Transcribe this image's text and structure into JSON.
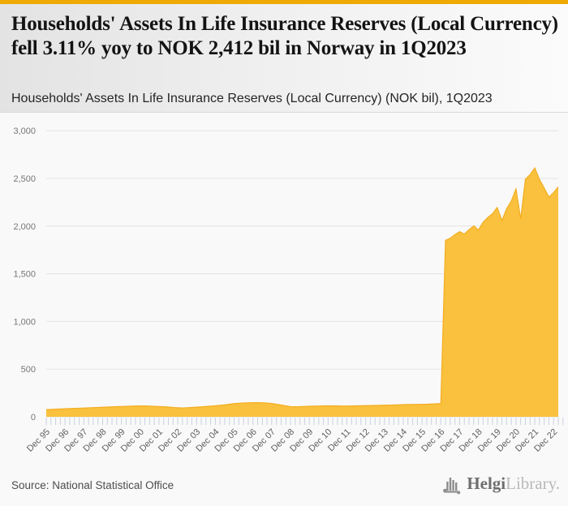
{
  "colors": {
    "accent_bar": "#f0a802",
    "area_fill": "#f9be35",
    "area_line": "#f3ad20",
    "gridline": "#e3e3e3",
    "tick": "#c9d0e2",
    "y_label": "#767676",
    "x_label": "#5f5f5f"
  },
  "header": {
    "title": "Households' Assets In Life Insurance Reserves (Local Currency) fell 3.11% yoy to NOK 2,412 bil in Norway in 1Q2023",
    "subtitle": "Households' Assets In Life Insurance Reserves (Local Currency) (NOK bil), 1Q2023"
  },
  "footer": {
    "source": "Source: National Statistical Office",
    "logo_primary": "Helgi",
    "logo_secondary": "Library."
  },
  "chart_data": {
    "type": "area",
    "title": "Households' Assets In Life Insurance Reserves (Local Currency) (NOK bil), 1Q2023",
    "ylabel": "",
    "xlabel": "",
    "unit": "NOK bil",
    "frequency": "quarterly",
    "start_period": "Dec 95",
    "end_period": "1Q 2023",
    "ylim": [
      0,
      3000
    ],
    "grid": "horizontal",
    "legend": "none",
    "yticks": [
      0,
      500,
      1000,
      1500,
      2000,
      2500,
      3000
    ],
    "ytick_labels": [
      "0",
      "500",
      "1,000",
      "1,500",
      "2,000",
      "2,500",
      "3,000"
    ],
    "x_year_labels": [
      "Dec 95",
      "Dec 96",
      "Dec 97",
      "Dec 98",
      "Dec 99",
      "Dec 00",
      "Dec 01",
      "Dec 02",
      "Dec 03",
      "Dec 04",
      "Dec 05",
      "Dec 06",
      "Dec 07",
      "Dec 08",
      "Dec 09",
      "Dec 10",
      "Dec 11",
      "Dec 12",
      "Dec 13",
      "Dec 14",
      "Dec 15",
      "Dec 16",
      "Dec 17",
      "Dec 18",
      "Dec 19",
      "Dec 20",
      "Dec 21",
      "Dec 22"
    ],
    "values": [
      75,
      78,
      80,
      82,
      84,
      86,
      88,
      90,
      92,
      94,
      96,
      98,
      100,
      102,
      104,
      106,
      108,
      110,
      112,
      113,
      114,
      114,
      112,
      110,
      108,
      105,
      102,
      98,
      95,
      93,
      95,
      98,
      101,
      104,
      108,
      112,
      116,
      120,
      126,
      132,
      138,
      142,
      145,
      147,
      148,
      148,
      147,
      145,
      140,
      132,
      124,
      115,
      107,
      105,
      107,
      109,
      111,
      112,
      113,
      114,
      115,
      115,
      114,
      113,
      113,
      114,
      115,
      116,
      117,
      118,
      119,
      120,
      121,
      122,
      124,
      126,
      128,
      129,
      130,
      130,
      131,
      132,
      134,
      136,
      140,
      1850,
      1872,
      1910,
      1941,
      1916,
      1962,
      2002,
      1958,
      2040,
      2090,
      2130,
      2195,
      2058,
      2180,
      2262,
      2390,
      2075,
      2491,
      2540,
      2610,
      2489,
      2400,
      2304,
      2350,
      2412
    ],
    "latest_value": 2412,
    "yoy_change_pct": -3.11,
    "country": "Norway"
  }
}
